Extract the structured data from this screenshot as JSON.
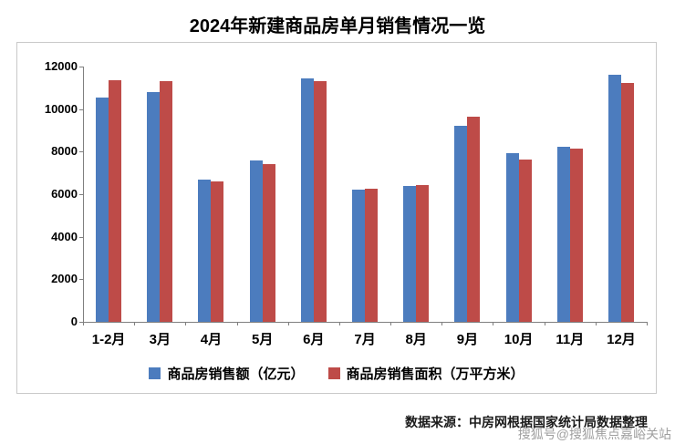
{
  "title": "2024年新建商品房单月销售情况一览",
  "source": "数据来源：中房网根据国家统计局数据整理",
  "watermark": "搜狐号@搜狐焦点嘉峪关站",
  "chart_data": {
    "type": "bar",
    "title": "2024年新建商品房单月销售情况一览",
    "categories": [
      "1-2月",
      "3月",
      "4月",
      "5月",
      "6月",
      "7月",
      "8月",
      "9月",
      "10月",
      "11月",
      "12月"
    ],
    "series": [
      {
        "name": "商品房销售额（亿元）",
        "color": "#4c7cbe",
        "values": [
          10550,
          10800,
          6700,
          7600,
          11450,
          6200,
          6400,
          9200,
          7950,
          8250,
          11600
        ]
      },
      {
        "name": "商品房销售面积（万平方米）",
        "color": "#be4b48",
        "values": [
          11350,
          11300,
          6600,
          7400,
          11300,
          6250,
          6450,
          9650,
          7650,
          8150,
          11250
        ]
      }
    ],
    "xlabel": "",
    "ylabel": "",
    "ylim": [
      0,
      12000
    ],
    "yticks": [
      0,
      2000,
      4000,
      6000,
      8000,
      10000,
      12000
    ],
    "grid": false,
    "legend_position": "bottom",
    "axis_color": "#7f7f7f"
  }
}
